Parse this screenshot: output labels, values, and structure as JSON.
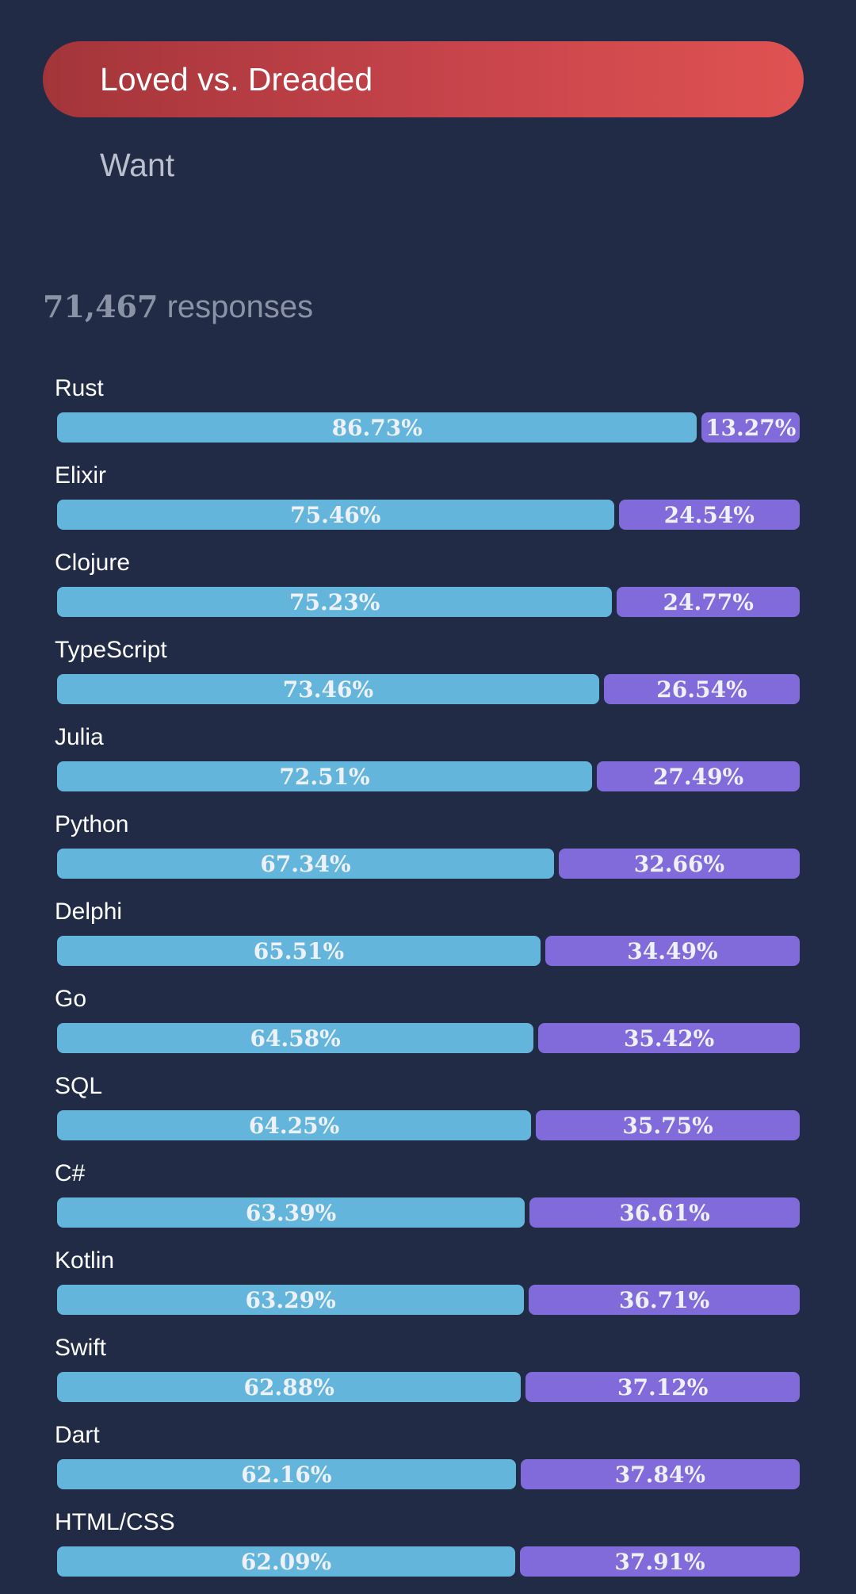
{
  "tabs": {
    "active_label": "Loved vs. Dreaded",
    "inactive_label": "Want"
  },
  "responses": {
    "count": "71,467",
    "label": "responses"
  },
  "colors": {
    "background": "#212b45",
    "loved": "#64b5dc",
    "dreaded": "#816ad9",
    "tab_active_start": "#a3353a",
    "tab_active_end": "#e05252"
  },
  "chart_data": {
    "type": "bar",
    "stacked": true,
    "orientation": "horizontal",
    "categories": [
      "Rust",
      "Elixir",
      "Clojure",
      "TypeScript",
      "Julia",
      "Python",
      "Delphi",
      "Go",
      "SQL",
      "C#",
      "Kotlin",
      "Swift",
      "Dart",
      "HTML/CSS"
    ],
    "series": [
      {
        "values": [
          86.73,
          75.46,
          75.23,
          73.46,
          72.51,
          67.34,
          65.51,
          64.58,
          64.25,
          63.39,
          63.29,
          62.88,
          62.16,
          62.09
        ],
        "labels": [
          "86.73%",
          "75.46%",
          "75.23%",
          "73.46%",
          "72.51%",
          "67.34%",
          "65.51%",
          "64.58%",
          "64.25%",
          "63.39%",
          "63.29%",
          "62.88%",
          "62.16%",
          "62.09%"
        ]
      },
      {
        "values": [
          13.27,
          24.54,
          24.77,
          26.54,
          27.49,
          32.66,
          34.49,
          35.42,
          35.75,
          36.61,
          36.71,
          37.12,
          37.84,
          37.91
        ],
        "labels": [
          "13.27%",
          "24.54%",
          "24.77%",
          "26.54%",
          "27.49%",
          "32.66%",
          "34.49%",
          "35.42%",
          "35.75%",
          "36.61%",
          "36.71%",
          "37.12%",
          "37.84%",
          "37.91%"
        ]
      }
    ],
    "xlim": [
      0,
      100
    ]
  }
}
